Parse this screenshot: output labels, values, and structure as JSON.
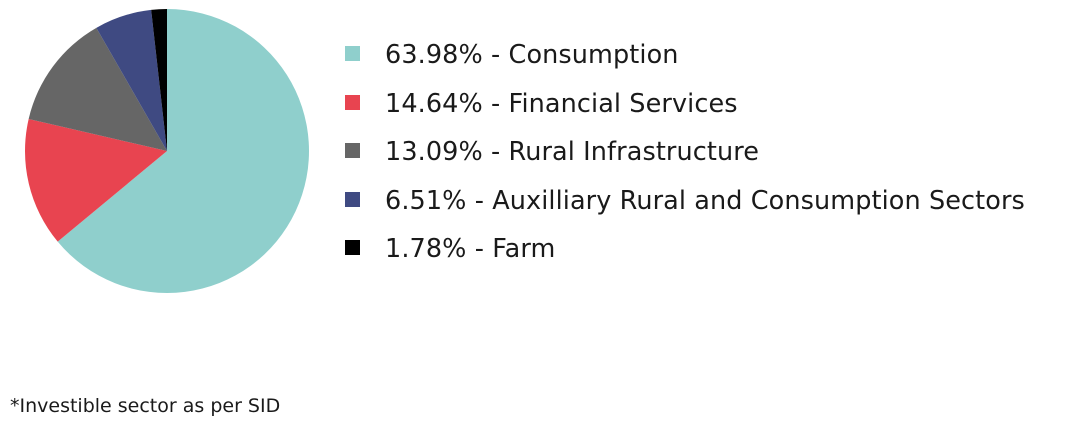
{
  "chart_data": {
    "type": "pie",
    "start_angle_deg": 0,
    "direction": "clockwise",
    "slices": [
      {
        "label": "Consumption",
        "value": 63.98,
        "display": "63.98% - Consumption",
        "color": "#8fcfcc"
      },
      {
        "label": "Financial Services",
        "value": 14.64,
        "display": "14.64% - Financial Services",
        "color": "#e84450"
      },
      {
        "label": "Rural Infrastructure",
        "value": 13.09,
        "display": "13.09% - Rural Infrastructure",
        "color": "#666666"
      },
      {
        "label": "Auxilliary Rural and Consumption Sectors",
        "value": 6.51,
        "display": "6.51% - Auxilliary Rural and Consumption Sectors",
        "color": "#3f4a82"
      },
      {
        "label": "Farm",
        "value": 1.78,
        "display": "1.78% - Farm",
        "color": "#000000"
      }
    ],
    "legend_position": "right"
  },
  "footnote": "*Investible sector as per SID"
}
